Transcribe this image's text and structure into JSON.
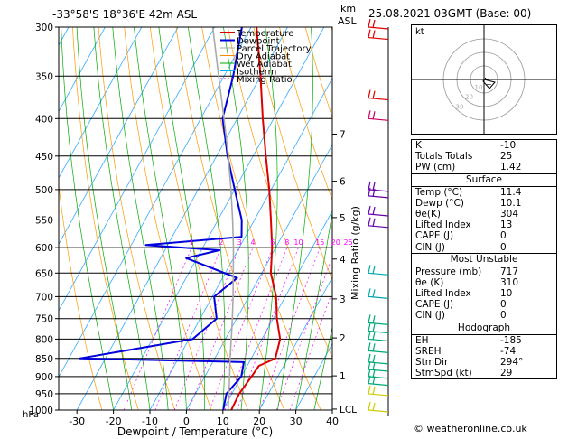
{
  "header": {
    "hpa_label": "hPa",
    "location": "-33°58'S  18°36'E  42m  ASL",
    "km_label": "km",
    "asl_label": "ASL",
    "datetime": "25.08.2021  03GMT  (Base: 00)"
  },
  "chart_data": {
    "type": "line",
    "title": "",
    "xlabel": "Dewpoint / Temperature (°C)",
    "ylabel": "hPa",
    "y2label": "Mixing Ratio (g/kg)",
    "xlim": [
      -35,
      40
    ],
    "ylim": [
      1000,
      300
    ],
    "y_scale": "log",
    "grid": true,
    "legend_position": "top-left",
    "x_ticks": [
      -30,
      -20,
      -10,
      0,
      10,
      20,
      30,
      40
    ],
    "y_ticks": [
      300,
      350,
      400,
      450,
      500,
      550,
      600,
      650,
      700,
      750,
      800,
      850,
      900,
      950,
      1000
    ],
    "km_ticks": [
      {
        "label": "7",
        "p": 420
      },
      {
        "label": "6",
        "p": 487
      },
      {
        "label": "5",
        "p": 546
      },
      {
        "label": "4",
        "p": 622
      },
      {
        "label": "3",
        "p": 705
      },
      {
        "label": "2",
        "p": 797
      },
      {
        "label": "1",
        "p": 898
      },
      {
        "label": "LCL",
        "p": 997
      }
    ],
    "mixing_ratio_labels": [
      "1",
      "2",
      "3",
      "4",
      "6",
      "8",
      "10",
      "15",
      "20",
      "25"
    ],
    "legend": [
      {
        "name": "Temperature",
        "color": "#dd0000"
      },
      {
        "name": "Dewpoint",
        "color": "#0000dd"
      },
      {
        "name": "Parcel Trajectory",
        "color": "#aaaaaa"
      },
      {
        "name": "Dry Adiabat",
        "color": "#ff8800"
      },
      {
        "name": "Wet Adiabat",
        "color": "#00aa00"
      },
      {
        "name": "Isotherm",
        "color": "#00aaff"
      },
      {
        "name": "Mixing Ratio",
        "color": "#ff00ff"
      }
    ],
    "series": [
      {
        "name": "Temperature",
        "color": "#dd0000",
        "points": [
          {
            "p": 1000,
            "t": 12.3
          },
          {
            "p": 950,
            "t": 12.0
          },
          {
            "p": 900,
            "t": 12.8
          },
          {
            "p": 870,
            "t": 13.2
          },
          {
            "p": 850,
            "t": 16.6
          },
          {
            "p": 800,
            "t": 15.0
          },
          {
            "p": 750,
            "t": 11.0
          },
          {
            "p": 700,
            "t": 7.5
          },
          {
            "p": 650,
            "t": 2.5
          },
          {
            "p": 600,
            "t": -1.0
          },
          {
            "p": 550,
            "t": -5.5
          },
          {
            "p": 500,
            "t": -10.5
          },
          {
            "p": 450,
            "t": -16.5
          },
          {
            "p": 400,
            "t": -23.0
          },
          {
            "p": 350,
            "t": -30.0
          },
          {
            "p": 300,
            "t": -38.5
          }
        ]
      },
      {
        "name": "Dewpoint",
        "color": "#0000dd",
        "points": [
          {
            "p": 1000,
            "t": 10.1
          },
          {
            "p": 950,
            "t": 8.5
          },
          {
            "p": 900,
            "t": 10.0
          },
          {
            "p": 860,
            "t": 8.5
          },
          {
            "p": 850,
            "t": -37.0
          },
          {
            "p": 800,
            "t": -9.0
          },
          {
            "p": 750,
            "t": -5.5
          },
          {
            "p": 700,
            "t": -9.5
          },
          {
            "p": 660,
            "t": -6.0
          },
          {
            "p": 620,
            "t": -23.0
          },
          {
            "p": 605,
            "t": -15.0
          },
          {
            "p": 595,
            "t": -36.0
          },
          {
            "p": 580,
            "t": -11.0
          },
          {
            "p": 550,
            "t": -13.5
          },
          {
            "p": 500,
            "t": -20.0
          },
          {
            "p": 450,
            "t": -27.0
          },
          {
            "p": 400,
            "t": -34.0
          },
          {
            "p": 350,
            "t": -37.5
          },
          {
            "p": 300,
            "t": -42.5
          }
        ]
      },
      {
        "name": "Parcel Trajectory",
        "color": "#aaaaaa",
        "points": [
          {
            "p": 1000,
            "t": 11.4
          },
          {
            "p": 950,
            "t": 9.2
          },
          {
            "p": 900,
            "t": 6.8
          },
          {
            "p": 850,
            "t": 4.2
          },
          {
            "p": 800,
            "t": 1.6
          },
          {
            "p": 750,
            "t": -1.2
          },
          {
            "p": 700,
            "t": -4.3
          },
          {
            "p": 650,
            "t": -7.8
          },
          {
            "p": 600,
            "t": -11.6
          },
          {
            "p": 550,
            "t": -16.0
          },
          {
            "p": 500,
            "t": -21.0
          },
          {
            "p": 450,
            "t": -26.8
          },
          {
            "p": 400,
            "t": -33.6
          },
          {
            "p": 350,
            "t": -41.5
          },
          {
            "p": 300,
            "t": -50.5
          }
        ]
      }
    ]
  },
  "indices": [
    {
      "label": "K",
      "value": "-10"
    },
    {
      "label": "Totals Totals",
      "value": "25"
    },
    {
      "label": "PW (cm)",
      "value": "1.42"
    }
  ],
  "surface": {
    "title": "Surface",
    "rows": [
      {
        "label": "Temp (°C)",
        "value": "11.4"
      },
      {
        "label": "Dewp (°C)",
        "value": "10.1"
      },
      {
        "label": "θe(K)",
        "value": "304"
      },
      {
        "label": "Lifted Index",
        "value": "13"
      },
      {
        "label": "CAPE (J)",
        "value": "0"
      },
      {
        "label": "CIN (J)",
        "value": "0"
      }
    ]
  },
  "most_unstable": {
    "title": "Most Unstable",
    "rows": [
      {
        "label": "Pressure (mb)",
        "value": "717"
      },
      {
        "label": "θe (K)",
        "value": "310"
      },
      {
        "label": "Lifted Index",
        "value": "10"
      },
      {
        "label": "CAPE (J)",
        "value": "0"
      },
      {
        "label": "CIN (J)",
        "value": "0"
      }
    ]
  },
  "hodograph": {
    "title": "Hodograph",
    "kt_label": "kt",
    "ring_labels": [
      "10",
      "20",
      "30"
    ],
    "rows": [
      {
        "label": "EH",
        "value": "-185"
      },
      {
        "label": "SREH",
        "value": "-74"
      },
      {
        "label": "StmDir",
        "value": "294°"
      },
      {
        "label": "StmSpd (kt)",
        "value": "29"
      }
    ]
  },
  "copyright": "© weatheronline.co.uk"
}
